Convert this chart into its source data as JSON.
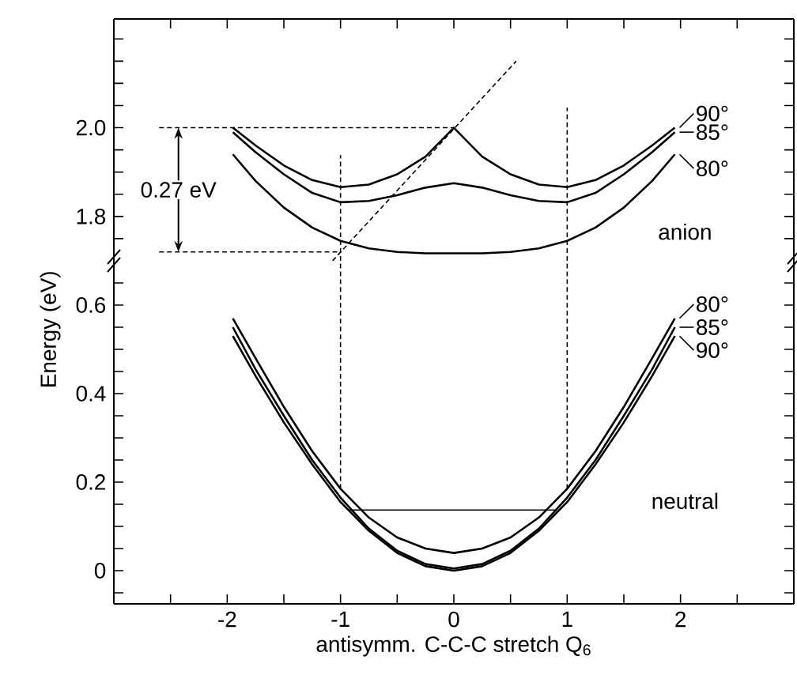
{
  "chart_data": [
    {
      "type": "line",
      "xlim": [
        -3,
        3
      ],
      "ylim": [
        1.7,
        2.245
      ],
      "tick_labels": "y",
      "legend": "right",
      "xticks": [
        {
          "value": -2.5,
          "label": null
        },
        {
          "value": -2,
          "label": null
        },
        {
          "value": -1.5,
          "label": null
        },
        {
          "value": -1,
          "label": null
        },
        {
          "value": -0.5,
          "label": null
        },
        {
          "value": 0,
          "label": null
        },
        {
          "value": 0.5,
          "label": null
        },
        {
          "value": 1,
          "label": null
        },
        {
          "value": 1.5,
          "label": null
        },
        {
          "value": 2,
          "label": null
        },
        {
          "value": 2.5,
          "label": null
        }
      ],
      "yticks": [
        {
          "value": 1.75,
          "label": null
        },
        {
          "value": 1.8,
          "label": "1.8"
        },
        {
          "value": 1.85,
          "label": null
        },
        {
          "value": 1.9,
          "label": null
        },
        {
          "value": 1.95,
          "label": null
        },
        {
          "value": 2.0,
          "label": "2.0"
        },
        {
          "value": 2.05,
          "label": null
        },
        {
          "value": 2.1,
          "label": null
        },
        {
          "value": 2.15,
          "label": null
        },
        {
          "value": 2.2,
          "label": null
        }
      ],
      "annotations": [
        "0.27 eV",
        "anion"
      ],
      "series": [
        {
          "name": "90°",
          "color": "#000000",
          "line_style": "solid",
          "x": [
            -1.95,
            -1.75,
            -1.5,
            -1.25,
            -1,
            -0.75,
            -0.5,
            -0.25,
            0,
            0.25,
            0.5,
            0.75,
            1,
            1.25,
            1.5,
            1.75,
            1.95
          ],
          "values": [
            2.0,
            1.96,
            1.915,
            1.882,
            1.866,
            1.872,
            1.895,
            1.935,
            2.0,
            1.935,
            1.895,
            1.872,
            1.866,
            1.882,
            1.915,
            1.96,
            2.0
          ]
        },
        {
          "name": "85°",
          "color": "#000000",
          "line_style": "solid",
          "x": [
            -1.95,
            -1.75,
            -1.5,
            -1.25,
            -1,
            -0.75,
            -0.5,
            -0.25,
            0,
            0.25,
            0.5,
            0.75,
            1,
            1.25,
            1.5,
            1.75,
            1.95
          ],
          "values": [
            1.99,
            1.945,
            1.895,
            1.853,
            1.832,
            1.835,
            1.848,
            1.865,
            1.875,
            1.865,
            1.848,
            1.835,
            1.832,
            1.853,
            1.895,
            1.945,
            1.99
          ]
        },
        {
          "name": "80°",
          "color": "#000000",
          "line_style": "solid",
          "x": [
            -1.95,
            -1.75,
            -1.5,
            -1.25,
            -1,
            -0.75,
            -0.5,
            -0.25,
            0,
            0.25,
            0.5,
            0.75,
            1,
            1.25,
            1.5,
            1.75,
            1.95
          ],
          "values": [
            1.94,
            1.88,
            1.82,
            1.775,
            1.745,
            1.728,
            1.72,
            1.717,
            1.717,
            1.717,
            1.72,
            1.728,
            1.745,
            1.775,
            1.82,
            1.88,
            1.94
          ]
        },
        {
          "color": "#000000",
          "line_style": "dashed",
          "x": [
            -2.6,
            0
          ],
          "values": [
            2.0,
            2.0
          ]
        },
        {
          "color": "#000000",
          "line_style": "dashed",
          "x": [
            -2.6,
            -1
          ],
          "values": [
            1.72,
            1.72
          ]
        },
        {
          "color": "#000000",
          "line_style": "dashed",
          "x": [
            -1,
            -1
          ],
          "values": [
            1.7,
            1.938
          ]
        },
        {
          "color": "#000000",
          "line_style": "dashed",
          "x": [
            1,
            1
          ],
          "values": [
            1.7,
            2.045
          ]
        },
        {
          "color": "#000000",
          "line_style": "dashed",
          "x": [
            -1.07,
            0.55
          ],
          "values": [
            1.7,
            2.15
          ]
        }
      ]
    },
    {
      "type": "line",
      "xlim": [
        -3,
        3
      ],
      "ylim": [
        -0.075,
        0.7
      ],
      "legend": "right",
      "xlabel": "antisymm. C-C-C stretch Q$_{6}$",
      "ylabel": "Energy (eV)",
      "xticks": [
        {
          "value": -2.5,
          "label": null
        },
        {
          "value": -2,
          "label": "-2"
        },
        {
          "value": -1.5,
          "label": null
        },
        {
          "value": -1,
          "label": "-1"
        },
        {
          "value": -0.5,
          "label": null
        },
        {
          "value": 0,
          "label": "0"
        },
        {
          "value": 0.5,
          "label": null
        },
        {
          "value": 1,
          "label": "1"
        },
        {
          "value": 1.5,
          "label": null
        },
        {
          "value": 2,
          "label": "2"
        },
        {
          "value": 2.5,
          "label": null
        }
      ],
      "yticks": [
        {
          "value": -0.05,
          "label": null
        },
        {
          "value": 0,
          "label": "0"
        },
        {
          "value": 0.05,
          "label": null
        },
        {
          "value": 0.1,
          "label": null
        },
        {
          "value": 0.15,
          "label": null
        },
        {
          "value": 0.2,
          "label": "0.2"
        },
        {
          "value": 0.25,
          "label": null
        },
        {
          "value": 0.3,
          "label": null
        },
        {
          "value": 0.35,
          "label": null
        },
        {
          "value": 0.4,
          "label": "0.4"
        },
        {
          "value": 0.45,
          "label": null
        },
        {
          "value": 0.5,
          "label": null
        },
        {
          "value": 0.55,
          "label": null
        },
        {
          "value": 0.6,
          "label": "0.6"
        },
        {
          "value": 0.65,
          "label": null
        }
      ],
      "annotations": [
        "neutral"
      ],
      "series": [
        {
          "name": "80°",
          "color": "#000000",
          "line_style": "solid",
          "x": [
            -1.95,
            -1.75,
            -1.5,
            -1.25,
            -1,
            -0.75,
            -0.5,
            -0.25,
            0,
            0.25,
            0.5,
            0.75,
            1,
            1.25,
            1.5,
            1.75,
            1.95
          ],
          "values": [
            0.57,
            0.48,
            0.37,
            0.27,
            0.185,
            0.12,
            0.075,
            0.05,
            0.04,
            0.05,
            0.075,
            0.12,
            0.185,
            0.27,
            0.37,
            0.48,
            0.57
          ]
        },
        {
          "name": "85°",
          "color": "#000000",
          "line_style": "solid",
          "x": [
            -1.95,
            -1.75,
            -1.5,
            -1.25,
            -1,
            -0.75,
            -0.5,
            -0.25,
            0,
            0.25,
            0.5,
            0.75,
            1,
            1.25,
            1.5,
            1.75,
            1.95
          ],
          "values": [
            0.55,
            0.455,
            0.35,
            0.25,
            0.165,
            0.095,
            0.045,
            0.015,
            0.005,
            0.015,
            0.045,
            0.095,
            0.165,
            0.25,
            0.35,
            0.455,
            0.55
          ]
        },
        {
          "name": "90°",
          "color": "#000000",
          "line_style": "solid",
          "x": [
            -1.95,
            -1.75,
            -1.5,
            -1.25,
            -1,
            -0.75,
            -0.5,
            -0.25,
            0,
            0.25,
            0.5,
            0.75,
            1,
            1.25,
            1.5,
            1.75,
            1.95
          ],
          "values": [
            0.53,
            0.44,
            0.335,
            0.24,
            0.155,
            0.09,
            0.04,
            0.01,
            0.0,
            0.01,
            0.04,
            0.09,
            0.155,
            0.24,
            0.335,
            0.44,
            0.53
          ]
        },
        {
          "color": "#000000",
          "line_style": "solid",
          "x": [
            -0.93,
            0.9
          ],
          "values": [
            0.137,
            0.137
          ]
        },
        {
          "color": "#000000",
          "line_style": "dashed",
          "x": [
            -1,
            -1
          ],
          "values": [
            0.185,
            0.7
          ]
        },
        {
          "color": "#000000",
          "line_style": "dashed",
          "x": [
            1,
            1
          ],
          "values": [
            0.185,
            0.7
          ]
        }
      ]
    }
  ]
}
